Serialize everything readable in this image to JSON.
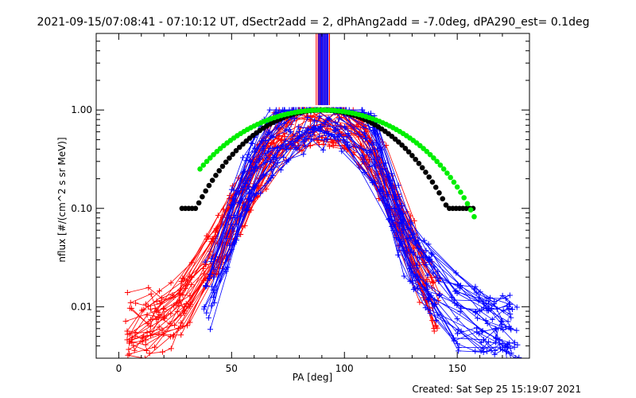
{
  "window": {
    "footer": "Created: Sat Sep 25 15:19:07 2021"
  },
  "chart_data": {
    "type": "line",
    "title": "2021-09-15/07:08:41 - 07:10:12 UT, dSectr2add = 2, dPhAng2add = -7.0deg, dPA290_est=  0.1deg",
    "xlabel": "PA [deg]",
    "ylabel": "nflux [#/(cm^2 s sr MeV)]",
    "xlim": [
      -10,
      182
    ],
    "ylim": [
      0.003,
      6
    ],
    "yscale": "log",
    "x_ticks": [
      0,
      50,
      100,
      150
    ],
    "x_tick_labels": [
      "0",
      "50",
      "100",
      "150"
    ],
    "y_ticks": [
      0.01,
      0.1,
      1.0
    ],
    "y_tick_labels": [
      "0.01",
      "0.10",
      "1.00"
    ],
    "grid": false,
    "legend": "none",
    "colors": {
      "red": "#ff0000",
      "blue": "#0000ff",
      "black": "#000000",
      "green": "#00ee00"
    },
    "vertical_marks": {
      "red_x": [
        87.5,
        88.3,
        89.2,
        90.1,
        91.0,
        91.9,
        92.8,
        93.4
      ],
      "blue_x": [
        88.6,
        89.0,
        89.5,
        89.9,
        90.3,
        90.7,
        91.1,
        91.5,
        91.9,
        92.3,
        92.7
      ],
      "y_from": 1.12,
      "y_to": 6
    },
    "series": [
      {
        "color": "red",
        "marker": "plus",
        "count": 30,
        "spread": 0.5,
        "profile": [
          [
            5,
            0.006
          ],
          [
            15,
            0.007
          ],
          [
            25,
            0.009
          ],
          [
            32,
            0.015
          ],
          [
            40,
            0.03
          ],
          [
            50,
            0.08
          ],
          [
            60,
            0.22
          ],
          [
            70,
            0.55
          ],
          [
            80,
            0.85
          ],
          [
            90,
            0.97
          ],
          [
            100,
            0.8
          ],
          [
            110,
            0.5
          ],
          [
            118,
            0.2
          ],
          [
            125,
            0.08
          ],
          [
            132,
            0.03
          ],
          [
            140,
            0.012
          ]
        ],
        "sample_x": [
          5,
          12,
          18,
          25,
          30,
          40,
          45,
          50,
          55,
          60,
          65,
          70,
          75,
          80,
          85,
          90,
          95,
          100,
          105,
          110,
          115,
          120,
          125,
          130,
          135,
          140
        ]
      },
      {
        "color": "blue",
        "marker": "plus",
        "count": 30,
        "spread": 0.6,
        "profile": [
          [
            40,
            0.012
          ],
          [
            45,
            0.03
          ],
          [
            50,
            0.07
          ],
          [
            55,
            0.14
          ],
          [
            60,
            0.25
          ],
          [
            65,
            0.38
          ],
          [
            70,
            0.5
          ],
          [
            75,
            0.65
          ],
          [
            80,
            0.8
          ],
          [
            85,
            0.93
          ],
          [
            90,
            0.97
          ],
          [
            95,
            0.92
          ],
          [
            100,
            0.85
          ],
          [
            105,
            0.75
          ],
          [
            110,
            0.55
          ],
          [
            115,
            0.3
          ],
          [
            120,
            0.12
          ],
          [
            130,
            0.03
          ],
          [
            140,
            0.015
          ],
          [
            150,
            0.009
          ],
          [
            160,
            0.007
          ],
          [
            170,
            0.006
          ],
          [
            175,
            0.005
          ]
        ],
        "sample_x": [
          40,
          50,
          55,
          60,
          65,
          70,
          75,
          80,
          85,
          90,
          95,
          100,
          110,
          115,
          120,
          125,
          130,
          135,
          140,
          150,
          160,
          165,
          170,
          175
        ]
      },
      {
        "color": "black",
        "marker": "dot",
        "x_start": 28,
        "x_end": 157,
        "x_step": 1.5,
        "model": "sin",
        "peak": 1.0,
        "center": 90,
        "exponent": 4.0,
        "floor": 0.1
      },
      {
        "color": "green",
        "marker": "dot",
        "x_start": 36,
        "x_end": 158,
        "x_step": 1.5,
        "model": "sin",
        "peak": 1.0,
        "center": 90,
        "exponent": 2.6,
        "floor": 0.0
      }
    ]
  }
}
